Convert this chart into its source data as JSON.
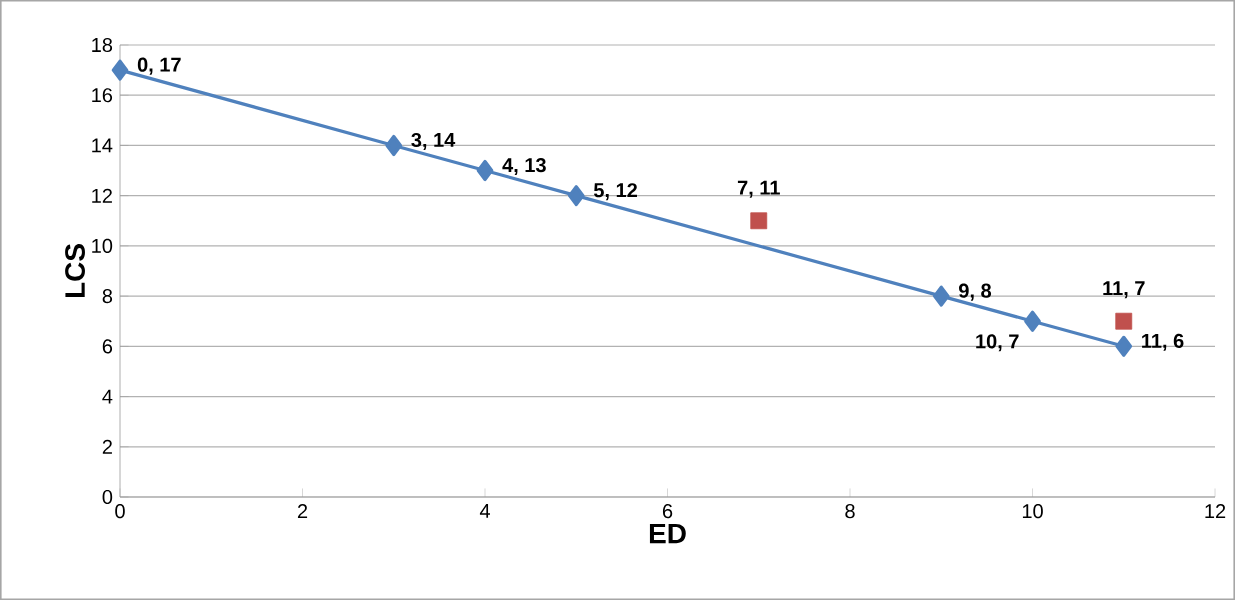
{
  "chart_data": {
    "type": "line",
    "xlabel": "ED",
    "ylabel": "LCS",
    "series": [
      {
        "color": "#4f81bd",
        "marker": "diamond",
        "x": [
          0,
          3,
          4,
          5,
          9,
          10,
          11
        ],
        "values": [
          17,
          14,
          13,
          12,
          8,
          7,
          6
        ],
        "value_labels": [
          "0, 17",
          "3, 14",
          "4, 13",
          "5, 12",
          "9, 8",
          "10, 7",
          "11, 6"
        ]
      },
      {
        "type": "scatter",
        "color": "#c0504d",
        "marker": "square",
        "x": [
          7,
          11
        ],
        "values": [
          11,
          7
        ],
        "value_labels": [
          "7, 11",
          "11, 7"
        ]
      }
    ],
    "xlim": [
      0,
      12
    ],
    "xticks": [
      0,
      2,
      4,
      6,
      8,
      10,
      12
    ],
    "ylim": [
      0,
      18
    ],
    "yticks": [
      0,
      2,
      4,
      6,
      8,
      10,
      12,
      14,
      16,
      18
    ],
    "grid": "y"
  }
}
